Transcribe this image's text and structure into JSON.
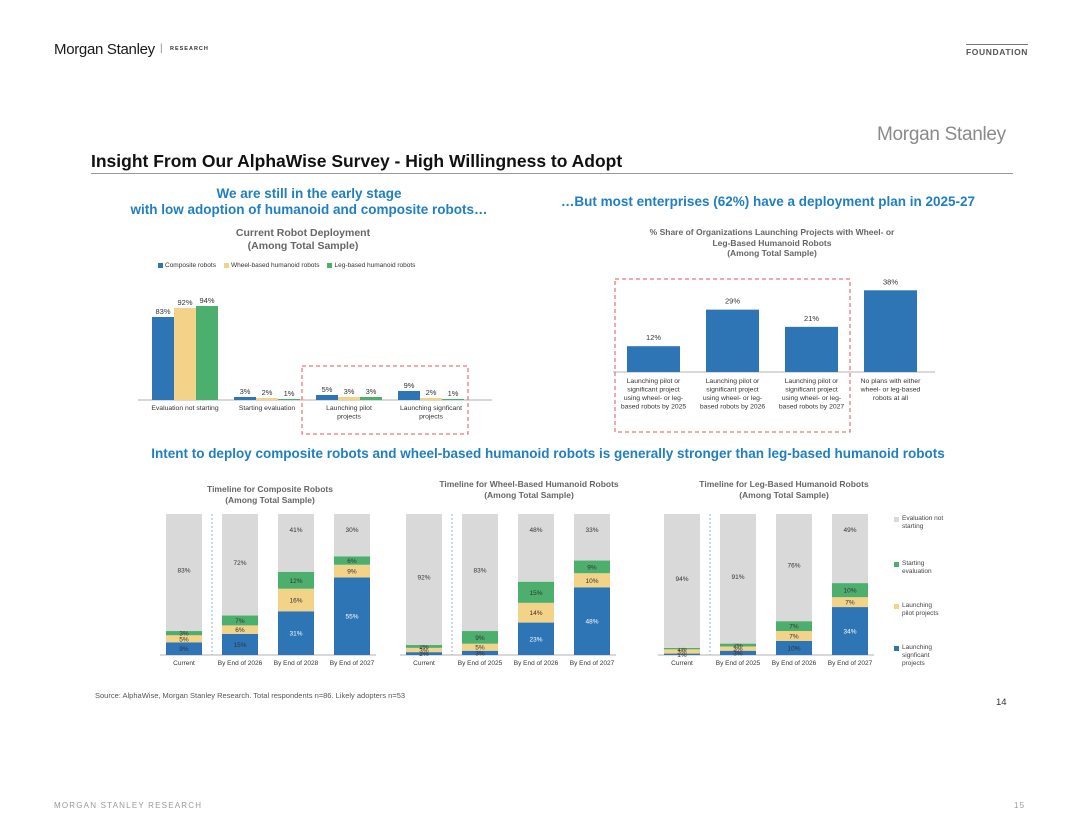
{
  "header": {
    "brand": "Morgan Stanley",
    "divider": "|",
    "section": "RESEARCH",
    "tag": "FOUNDATION"
  },
  "slide": {
    "logo": "Morgan Stanley",
    "title": "Insight From Our AlphaWise Survey - High Willingness to Adopt",
    "headline_left_1": "We are still in the early stage",
    "headline_left_2": "with low adoption of humanoid and composite robots…",
    "headline_right": "…But most enterprises (62%) have a deployment plan in 2025-27",
    "headline_middle": "Intent to deploy composite robots and wheel-based humanoid robots is generally stronger than leg-based humanoid robots",
    "source": "Source:  AlphaWise, Morgan Stanley Research. Total respondents n=86. Likely adopters n=53",
    "page_number": "14"
  },
  "footer": {
    "left": "MORGAN STANLEY RESEARCH",
    "right": "15"
  },
  "colors": {
    "blue": "#2e75b6",
    "yellow": "#f2d388",
    "green": "#4caf6e",
    "grey": "#d9d9d9",
    "accent": "#1f7fc0",
    "dash": "#e05555"
  },
  "chart_data": [
    {
      "type": "bar",
      "title": "Current Robot Deployment",
      "subtitle": "(Among Total Sample)",
      "categories": [
        "Evaluation not starting",
        "Starting evaluation",
        "Launching pilot projects",
        "Launching signficant projects"
      ],
      "series": [
        {
          "name": "Composite robots",
          "values": [
            83,
            3,
            5,
            9
          ]
        },
        {
          "name": "Wheel-based humanoid robots",
          "values": [
            92,
            2,
            3,
            2
          ]
        },
        {
          "name": "Leg-based humanoid robots",
          "values": [
            94,
            1,
            3,
            1
          ]
        }
      ],
      "ylim": [
        0,
        100
      ],
      "legend": "top",
      "highlight": "Launching pilot projects and Launching signficant projects (dashed box)"
    },
    {
      "type": "bar",
      "title": "% Share of Organizations Launching Projects with Wheel- or Leg-Based Humanoid Robots",
      "subtitle": "(Among Total Sample)",
      "categories": [
        "Launching pilot or significant project using wheel- or leg-based robots by 2025",
        "Launching pilot or significant project using wheel- or leg-based robots by 2026",
        "Launching pilot or significant project using wheel- or leg-based robots by 2027",
        "No plans with either wheel- or leg-based robots at all"
      ],
      "values": [
        12,
        29,
        21,
        38
      ],
      "ylim": [
        0,
        40
      ],
      "highlight": "first three bars (dashed box)"
    },
    {
      "type": "bar",
      "stacked": true,
      "title": "Timeline for Composite Robots",
      "subtitle": "(Among Total Sample)",
      "categories": [
        "Current",
        "By End of 2026",
        "By End of 2028",
        "By End of 2027"
      ],
      "series": [
        {
          "name": "Launching signficant projects",
          "values": [
            9,
            15,
            31,
            55
          ]
        },
        {
          "name": "Launching pilot projects",
          "values": [
            5,
            6,
            16,
            9
          ]
        },
        {
          "name": "Starting evaluation",
          "values": [
            3,
            7,
            12,
            6
          ]
        },
        {
          "name": "Evaluation not starting",
          "values": [
            83,
            72,
            41,
            30
          ]
        }
      ]
    },
    {
      "type": "bar",
      "stacked": true,
      "title": "Timeline for Wheel-Based Humanoid Robots",
      "subtitle": "(Among Total Sample)",
      "categories": [
        "Current",
        "By End of 2025",
        "By End of 2026",
        "By End of 2027"
      ],
      "series": [
        {
          "name": "Launching signficant projects",
          "values": [
            2,
            3,
            23,
            48
          ]
        },
        {
          "name": "Launching pilot projects",
          "values": [
            3,
            5,
            14,
            10
          ]
        },
        {
          "name": "Starting evaluation",
          "values": [
            2,
            9,
            15,
            9
          ]
        },
        {
          "name": "Evaluation not starting",
          "values": [
            92,
            83,
            48,
            33
          ]
        }
      ]
    },
    {
      "type": "bar",
      "stacked": true,
      "title": "Timeline for Leg-Based Humanoid Robots",
      "subtitle": "(Among Total Sample)",
      "categories": [
        "Current",
        "By End of 2025",
        "By End of 2026",
        "By End of 2027"
      ],
      "series": [
        {
          "name": "Launching signficant projects",
          "values": [
            1,
            3,
            10,
            34
          ]
        },
        {
          "name": "Launching pilot projects",
          "values": [
            3,
            3,
            7,
            7
          ]
        },
        {
          "name": "Starting evaluation",
          "values": [
            1,
            2,
            7,
            10
          ]
        },
        {
          "name": "Evaluation not starting",
          "values": [
            94,
            91,
            76,
            49
          ]
        }
      ]
    }
  ]
}
